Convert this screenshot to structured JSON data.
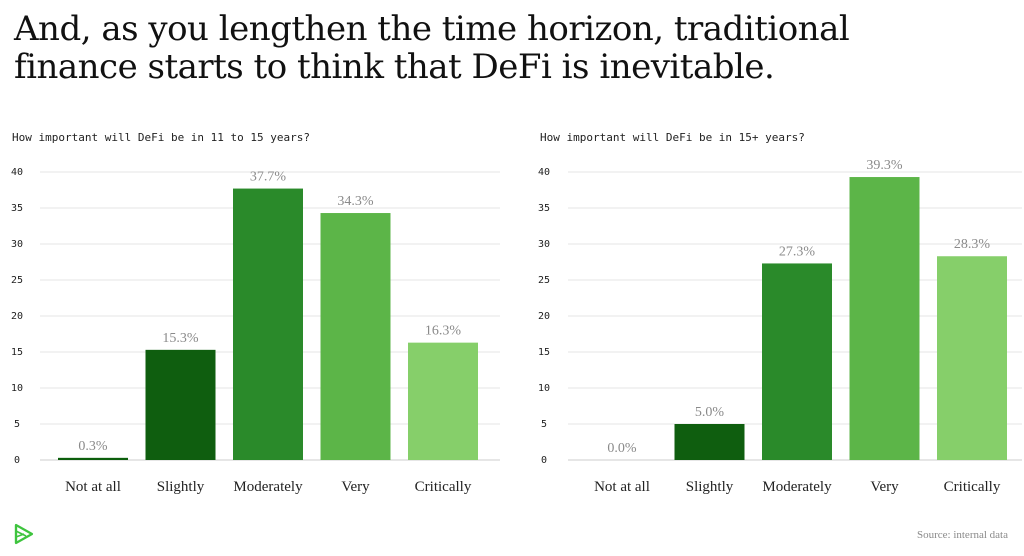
{
  "headline": {
    "line1": "And, as you lengthen the time horizon, traditional",
    "line2": "finance starts to think that DeFi is inevitable."
  },
  "source": "Source: internal data",
  "logo_icon": "green-play-logo-icon",
  "colors": {
    "not_at_all": "#0c5e0c",
    "slightly": "#0f5e0f",
    "moderately": "#2a8a2a",
    "very": "#5cb548",
    "critically": "#86cf6a",
    "grid": "#e6e6e6",
    "baseline": "#cccccc"
  },
  "chart_data": [
    {
      "type": "bar",
      "title": "How important will DeFi be in 11 to 15 years?",
      "categories": [
        "Not at all",
        "Slightly",
        "Moderately",
        "Very",
        "Critically"
      ],
      "values": [
        0.3,
        15.3,
        37.7,
        34.3,
        16.3
      ],
      "data_labels": [
        "0.3%",
        "15.3%",
        "37.7%",
        "34.3%",
        "16.3%"
      ],
      "ylim": [
        0,
        40
      ],
      "yticks": [
        0,
        5,
        10,
        15,
        20,
        25,
        30,
        35,
        40
      ],
      "grid": true
    },
    {
      "type": "bar",
      "title": "How important will DeFi be in 15+ years?",
      "categories": [
        "Not at all",
        "Slightly",
        "Moderately",
        "Very",
        "Critically"
      ],
      "values": [
        0.0,
        5.0,
        27.3,
        39.3,
        28.3
      ],
      "data_labels": [
        "0.0%",
        "5.0%",
        "27.3%",
        "39.3%",
        "28.3%"
      ],
      "ylim": [
        0,
        40
      ],
      "yticks": [
        0,
        5,
        10,
        15,
        20,
        25,
        30,
        35,
        40
      ],
      "grid": true
    }
  ]
}
